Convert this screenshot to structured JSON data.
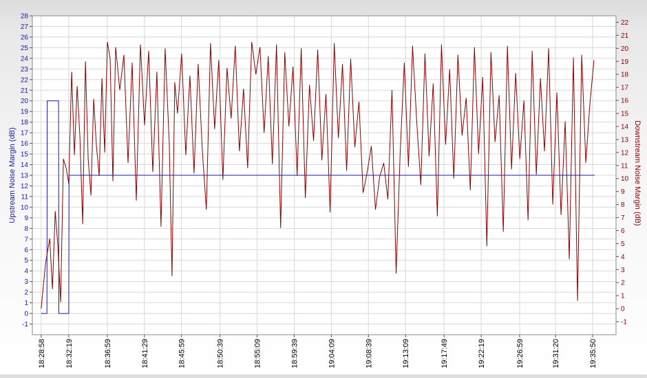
{
  "chart_data": {
    "type": "line",
    "title": "",
    "ylabel": "Upstream Noise Margin (dB)",
    "ylabel_right": "Downstream Noise Margin (dB)",
    "ylim": [
      -2,
      28
    ],
    "ylim_right": [
      -2,
      22.5
    ],
    "yticks": [
      -1,
      0,
      1,
      2,
      3,
      4,
      5,
      6,
      7,
      8,
      9,
      10,
      11,
      12,
      13,
      14,
      15,
      16,
      17,
      18,
      19,
      20,
      21,
      22,
      23,
      24,
      25,
      26,
      27,
      28
    ],
    "yticks_right": [
      -1,
      0,
      1,
      2,
      3,
      4,
      5,
      6,
      7,
      8,
      9,
      10,
      11,
      12,
      13,
      14,
      15,
      16,
      17,
      18,
      19,
      20,
      21,
      22
    ],
    "x_range": [
      "18:27:54",
      "19:38:40"
    ],
    "x_tick_labels": [
      "18:28:58",
      "18:32:19",
      "18:36:59",
      "18:41:29",
      "18:45:59",
      "18:50:39",
      "18:55:09",
      "18:59:39",
      "19:04:09",
      "19:08:39",
      "19:13:09",
      "19:17:49",
      "19:22:19",
      "19:26:59",
      "19:31:20",
      "19:35:50"
    ],
    "grid": true,
    "legend": "none",
    "colors": {
      "upstream": "#1a1aa8",
      "downstream": "#8b0000",
      "grid": "#d8d8d8"
    },
    "series": [
      {
        "name": "Upstream Noise Margin (dB)",
        "axis": "left",
        "x": [
          "18:28:58",
          "18:29:40",
          "18:29:42",
          "18:31:05",
          "18:31:07",
          "18:32:19",
          "18:32:21",
          "19:36:05"
        ],
        "y": [
          0,
          0,
          20,
          20,
          0,
          0,
          13,
          13
        ]
      },
      {
        "name": "Downstream Noise Margin (dB)",
        "axis": "right",
        "x": [
          "18:28:58",
          "18:29:30",
          "18:30:00",
          "18:30:20",
          "18:30:40",
          "18:31:00",
          "18:31:20",
          "18:31:40",
          "18:32:00",
          "18:32:19",
          "18:32:40",
          "18:33:00",
          "18:33:20",
          "18:33:40",
          "18:34:00",
          "18:34:20",
          "18:34:40",
          "18:35:00",
          "18:35:20",
          "18:35:40",
          "18:36:00",
          "18:36:20",
          "18:36:40",
          "18:37:00",
          "18:37:20",
          "18:37:40",
          "18:38:00",
          "18:38:30",
          "18:39:00",
          "18:39:30",
          "18:40:00",
          "18:40:30",
          "18:41:00",
          "18:41:30",
          "18:42:00",
          "18:42:30",
          "18:43:00",
          "18:43:30",
          "18:44:00",
          "18:44:30",
          "18:44:50",
          "18:45:10",
          "18:45:30",
          "18:46:00",
          "18:46:30",
          "18:47:00",
          "18:47:30",
          "18:48:00",
          "18:48:30",
          "18:49:00",
          "18:49:30",
          "18:50:00",
          "18:50:30",
          "18:51:00",
          "18:51:30",
          "18:52:00",
          "18:52:30",
          "18:53:00",
          "18:53:30",
          "18:54:00",
          "18:54:30",
          "18:55:00",
          "18:55:30",
          "18:56:00",
          "18:56:30",
          "18:57:00",
          "18:57:30",
          "18:58:00",
          "18:58:30",
          "18:59:00",
          "18:59:30",
          "19:00:00",
          "19:00:30",
          "19:01:00",
          "19:01:30",
          "19:02:00",
          "19:02:30",
          "19:03:00",
          "19:03:30",
          "19:04:00",
          "19:04:30",
          "19:05:00",
          "19:05:30",
          "19:06:00",
          "19:06:30",
          "19:07:00",
          "19:07:30",
          "19:08:00",
          "19:08:30",
          "19:09:00",
          "19:09:30",
          "19:10:00",
          "19:10:30",
          "19:11:00",
          "19:11:30",
          "19:12:00",
          "19:12:30",
          "19:13:00",
          "19:13:30",
          "19:14:00",
          "19:14:30",
          "19:15:00",
          "19:15:30",
          "19:16:00",
          "19:16:30",
          "19:17:00",
          "19:17:30",
          "19:18:00",
          "19:18:30",
          "19:19:00",
          "19:19:30",
          "19:20:00",
          "19:20:30",
          "19:21:00",
          "19:21:30",
          "19:22:00",
          "19:22:30",
          "19:23:00",
          "19:23:30",
          "19:24:00",
          "19:24:30",
          "19:25:00",
          "19:25:30",
          "19:26:00",
          "19:26:30",
          "19:27:00",
          "19:27:30",
          "19:28:00",
          "19:28:30",
          "19:29:00",
          "19:29:30",
          "19:30:00",
          "19:30:30",
          "19:31:00",
          "19:31:30",
          "19:32:00",
          "19:32:30",
          "19:33:00",
          "19:33:30",
          "19:34:00",
          "19:34:30",
          "19:35:00",
          "19:35:30",
          "19:36:00"
        ],
        "y": [
          0,
          3.5,
          5.4,
          1.5,
          7.5,
          4.8,
          0.5,
          11.5,
          10.8,
          9.6,
          18.2,
          11.8,
          17.1,
          13.2,
          6.5,
          19.0,
          11.5,
          8.7,
          16.1,
          12.5,
          10.2,
          17.7,
          12.0,
          20.5,
          19.2,
          9.8,
          20.1,
          16.8,
          19.5,
          11.2,
          18.9,
          8.3,
          20.3,
          14.1,
          19.8,
          10.5,
          18.2,
          6.3,
          20.0,
          12.7,
          2.5,
          17.4,
          15.0,
          19.6,
          11.8,
          17.9,
          10.4,
          18.8,
          12.2,
          7.6,
          20.4,
          13.8,
          19.1,
          9.9,
          18.5,
          14.6,
          20.2,
          12.1,
          16.9,
          10.8,
          20.5,
          18.0,
          20.1,
          13.5,
          19.4,
          11.1,
          20.3,
          6.2,
          19.7,
          14.0,
          18.6,
          10.2,
          20.0,
          8.5,
          17.2,
          12.9,
          19.9,
          11.4,
          16.5,
          7.4,
          20.4,
          13.1,
          18.8,
          10.6,
          19.2,
          12.4,
          15.9,
          8.9,
          10.5,
          12.5,
          7.6,
          10.1,
          11.2,
          8.4,
          16.8,
          2.7,
          12.0,
          18.9,
          10.9,
          20.2,
          14.4,
          9.5,
          19.6,
          11.7,
          17.3,
          7.1,
          20.3,
          12.6,
          18.4,
          10.0,
          19.5,
          13.3,
          16.2,
          9.1,
          20.1,
          11.9,
          17.8,
          4.8,
          19.7,
          12.8,
          16.4,
          5.9,
          20.2,
          10.7,
          18.1,
          11.5,
          16.0,
          6.8,
          19.8,
          10.3,
          17.7,
          12.1,
          20.0,
          8.0,
          16.6,
          7.2,
          14.4,
          3.8,
          19.3,
          0.6,
          19.5,
          11.2,
          15.8,
          19.1
        ]
      }
    ]
  }
}
